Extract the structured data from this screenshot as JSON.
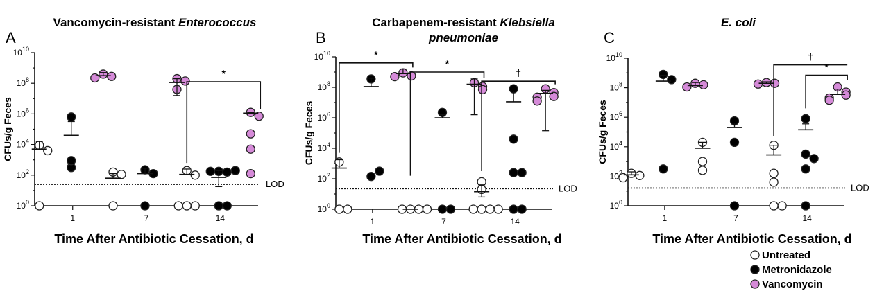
{
  "colors": {
    "untreated": "#ffffff",
    "metronidazole": "#000000",
    "vancomycin": "#d58ad8",
    "stroke": "#222222"
  },
  "axis_common": {
    "ylabel": "CFUs/g Feces",
    "xlabel": "Time After Antibiotic Cessation, d",
    "lod_label": "LOD",
    "ytick_labels": [
      "10^0",
      "10^2",
      "10^4",
      "10^6",
      "10^8",
      "10^10"
    ],
    "xtick_labels": [
      "1",
      "7",
      "14"
    ]
  },
  "legend": [
    {
      "label": "Untreated",
      "marker": "open-circle"
    },
    {
      "label": "Metronidazole",
      "marker": "filled-circle"
    },
    {
      "label": "Vancomycin",
      "marker": "purple-circle"
    }
  ],
  "chart_data": [
    {
      "type": "scatter",
      "panel_letter": "A",
      "title_lines": [
        [
          {
            "text": "Vancomycin-resistant ",
            "italic": false
          },
          {
            "text": "Enterococcus",
            "italic": true
          }
        ]
      ],
      "ylim_log10": [
        0,
        10
      ],
      "lod_log10": 1.4,
      "days": [
        1,
        7,
        14
      ],
      "groups": [
        "Untreated",
        "Metronidazole",
        "Vancomycin"
      ],
      "points": {
        "1": {
          "Untreated": [
            3.95,
            3.6,
            0
          ],
          "Metronidazole": [
            5.8,
            2.5,
            2.95
          ],
          "Vancomycin": [
            8.6,
            8.45,
            8.35
          ]
        },
        "7": {
          "Untreated": [
            2.2,
            2.05,
            0
          ],
          "Metronidazole": [
            2.35,
            2.1,
            0
          ],
          "Vancomycin": [
            8.3,
            8.15,
            7.6
          ]
        },
        "14": {
          "Untreated": [
            2.3,
            2.0,
            0,
            0,
            0
          ],
          "Metronidazole": [
            2.25,
            2.2,
            2.25,
            2.3,
            0,
            0
          ],
          "Vancomycin": [
            6.1,
            5.85,
            4.7,
            3.7,
            2.1
          ]
        }
      },
      "summary": {
        "1": {
          "Untreated": {
            "mean": 3.7,
            "sd_hi": 4.2,
            "sd_lo": 3.7
          },
          "Metronidazole": {
            "mean": 4.6,
            "sd_hi": 5.5,
            "sd_lo": 4.6
          },
          "Vancomycin": {
            "mean": 8.5,
            "sd_hi": 8.7,
            "sd_lo": 8.5
          }
        },
        "7": {
          "Untreated": {
            "mean": 1.8,
            "sd_hi": 2.1,
            "sd_lo": 1.8
          },
          "Metronidazole": {
            "mean": 2.1,
            "sd_hi": 2.45,
            "sd_lo": 2.1
          },
          "Vancomycin": {
            "mean": 8.05,
            "sd_hi": 8.3,
            "sd_lo": 7.2
          }
        },
        "14": {
          "Untreated": {
            "mean": 2.05,
            "sd_hi": 2.4,
            "sd_lo": 2.05
          },
          "Metronidazole": {
            "mean": 1.85,
            "sd_hi": 2.3,
            "sd_lo": 1.25
          },
          "Vancomycin": {
            "mean": 6.05,
            "sd_hi": 6.1,
            "sd_lo": 6.05
          }
        }
      },
      "brackets": [
        {
          "symbol": "*",
          "from_day": 14,
          "from_group": "Untreated",
          "to_day": 14,
          "to_group": "Vancomycin",
          "level_log10": 8.1,
          "left_drop_log10": 2.8,
          "right_drop_log10": 6.3
        }
      ]
    },
    {
      "type": "scatter",
      "panel_letter": "B",
      "title_lines": [
        [
          {
            "text": "Carbapenem-resistant ",
            "italic": false
          },
          {
            "text": "Klebsiella",
            "italic": true
          }
        ],
        [
          {
            "text": "pneumoniae",
            "italic": true
          }
        ]
      ],
      "ylim_log10": [
        0,
        10
      ],
      "lod_log10": 1.35,
      "days": [
        1,
        7,
        14
      ],
      "groups": [
        "Untreated",
        "Metronidazole",
        "Vancomycin"
      ],
      "points": {
        "1": {
          "Untreated": [
            3.1,
            0,
            0
          ],
          "Metronidazole": [
            8.55,
            2.15,
            2.5
          ],
          "Vancomycin": [
            8.95,
            8.75,
            8.7
          ]
        },
        "7": {
          "Untreated": [
            0,
            0,
            0,
            0
          ],
          "Metronidazole": [
            6.35,
            0,
            0
          ],
          "Vancomycin": [
            8.3,
            8.05,
            7.85
          ]
        },
        "14": {
          "Untreated": [
            1.8,
            1.3,
            0,
            0,
            0,
            0
          ],
          "Metronidazole": [
            7.9,
            4.6,
            2.4,
            2.4,
            0,
            0
          ],
          "Vancomycin": [
            7.9,
            7.65,
            7.4,
            7.35,
            7.1
          ]
        }
      },
      "summary": {
        "1": {
          "Untreated": {
            "mean": 2.7,
            "sd_hi": 3.25,
            "sd_lo": 2.7
          },
          "Metronidazole": {
            "mean": 8.05,
            "sd_hi": 8.6,
            "sd_lo": 8.05
          },
          "Vancomycin": {
            "mean": 8.9,
            "sd_hi": 9.2,
            "sd_lo": 8.9
          }
        },
        "7": {
          "Untreated": {
            "mean": 0,
            "sd_hi": 0,
            "sd_lo": 0
          },
          "Metronidazole": {
            "mean": 6.0,
            "sd_hi": 6.2,
            "sd_lo": 6.0
          },
          "Vancomycin": {
            "mean": 8.2,
            "sd_hi": 8.55,
            "sd_lo": 6.2
          }
        },
        "14": {
          "Untreated": {
            "mean": 1.15,
            "sd_hi": 1.6,
            "sd_lo": 0.8
          },
          "Metronidazole": {
            "mean": 7.05,
            "sd_hi": 7.75,
            "sd_lo": 7.05
          },
          "Vancomycin": {
            "mean": 7.6,
            "sd_hi": 7.8,
            "sd_lo": 5.15
          }
        }
      },
      "brackets": [
        {
          "symbol": "*",
          "from_day": 1,
          "from_group": "Untreated",
          "to_day": 1,
          "to_group": "Vancomycin",
          "level_log10": 9.6,
          "left_drop_log10": 3.7,
          "right_drop_log10": 9.3
        },
        {
          "symbol": "*",
          "from_day": 7,
          "from_group": "Untreated",
          "to_day": 7,
          "to_group": "Vancomycin",
          "level_log10": 9.0,
          "left_drop_log10": 2.2,
          "right_drop_log10": 8.6
        },
        {
          "symbol": "†",
          "from_day": 14,
          "from_group": "Untreated",
          "to_day": 14,
          "to_group": "Vancomycin",
          "level_log10": 8.4,
          "left_drop_log10": 2.5,
          "right_drop_log10": 8.2
        }
      ]
    },
    {
      "type": "scatter",
      "panel_letter": "C",
      "title_lines": [
        [
          {
            "text": "E. coli",
            "italic": true
          }
        ]
      ],
      "ylim_log10": [
        0,
        10
      ],
      "lod_log10": 1.2,
      "days": [
        1,
        7,
        14
      ],
      "groups": [
        "Untreated",
        "Metronidazole",
        "Vancomycin"
      ],
      "points": {
        "1": {
          "Untreated": [
            2.2,
            2.05,
            1.9
          ],
          "Metronidazole": [
            8.9,
            8.55,
            2.5
          ],
          "Vancomycin": [
            8.3,
            8.2,
            8.05
          ]
        },
        "7": {
          "Untreated": [
            4.3,
            3.0,
            2.4
          ],
          "Metronidazole": [
            5.75,
            4.3,
            0
          ],
          "Vancomycin": [
            8.35,
            8.3,
            8.25
          ]
        },
        "14": {
          "Untreated": [
            4.1,
            2.2,
            1.6,
            0,
            0
          ],
          "Metronidazole": [
            5.9,
            3.5,
            3.2,
            2.5,
            0
          ],
          "Vancomycin": [
            8.05,
            7.7,
            7.5,
            7.3,
            7.15
          ]
        }
      },
      "summary": {
        "1": {
          "Untreated": {
            "mean": 2.1,
            "sd_hi": 2.3,
            "sd_lo": 2.1
          },
          "Metronidazole": {
            "mean": 8.45,
            "sd_hi": 8.85,
            "sd_lo": 8.45
          },
          "Vancomycin": {
            "mean": 8.15,
            "sd_hi": 8.35,
            "sd_lo": 8.15
          }
        },
        "7": {
          "Untreated": {
            "mean": 3.9,
            "sd_hi": 4.3,
            "sd_lo": 3.9
          },
          "Metronidazole": {
            "mean": 5.3,
            "sd_hi": 5.6,
            "sd_lo": 5.3
          },
          "Vancomycin": {
            "mean": 8.3,
            "sd_hi": 8.4,
            "sd_lo": 8.3
          }
        },
        "14": {
          "Untreated": {
            "mean": 3.45,
            "sd_hi": 4.1,
            "sd_lo": 3.45
          },
          "Metronidazole": {
            "mean": 5.15,
            "sd_hi": 5.55,
            "sd_lo": 5.15
          },
          "Vancomycin": {
            "mean": 7.55,
            "sd_hi": 7.9,
            "sd_lo": 7.55
          }
        }
      },
      "brackets": [
        {
          "symbol": "†",
          "from_day": 14,
          "from_group": "Untreated",
          "to_day": 14,
          "to_group": "Vancomycin",
          "level_log10": 9.55,
          "left_drop_log10": 4.7,
          "right_drop_log10": 9.55
        },
        {
          "symbol": "*",
          "from_day": 14,
          "from_group": "Metronidazole",
          "to_day": 14,
          "to_group": "Vancomycin",
          "level_log10": 8.85,
          "left_drop_log10": 6.6,
          "right_drop_log10": 8.5
        }
      ]
    }
  ]
}
